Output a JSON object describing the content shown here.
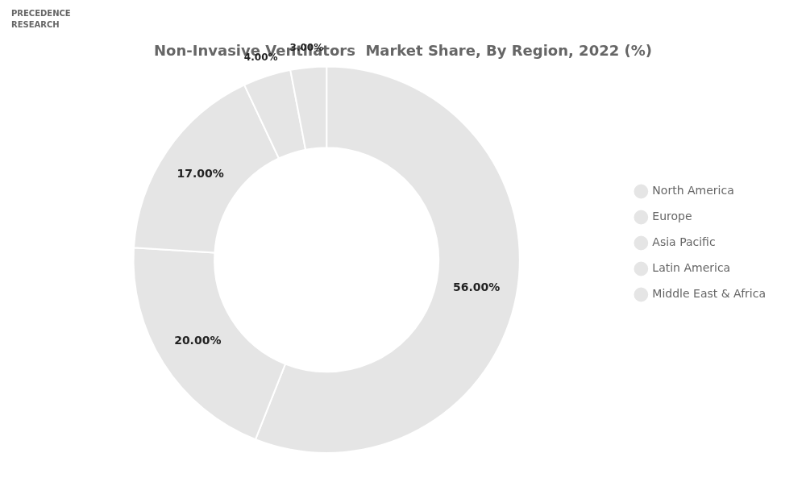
{
  "chart_data": {
    "type": "doughnut",
    "title": "Non-Invasive Ventilators  Market Share, By Region, 2022 (%)",
    "annotations": [
      "PRECEDENCE",
      "RESEARCH"
    ],
    "categories": [
      "North America",
      "Europe",
      "Asia Pacific",
      "Latin America",
      "Middle East & Africa"
    ],
    "values": [
      56.0,
      20.0,
      17.0,
      4.0,
      3.0
    ],
    "value_labels": [
      "56.00%",
      "20.00%",
      "17.00%",
      "4.00%",
      "3.00%"
    ],
    "data_labels": true,
    "legend": "right"
  }
}
